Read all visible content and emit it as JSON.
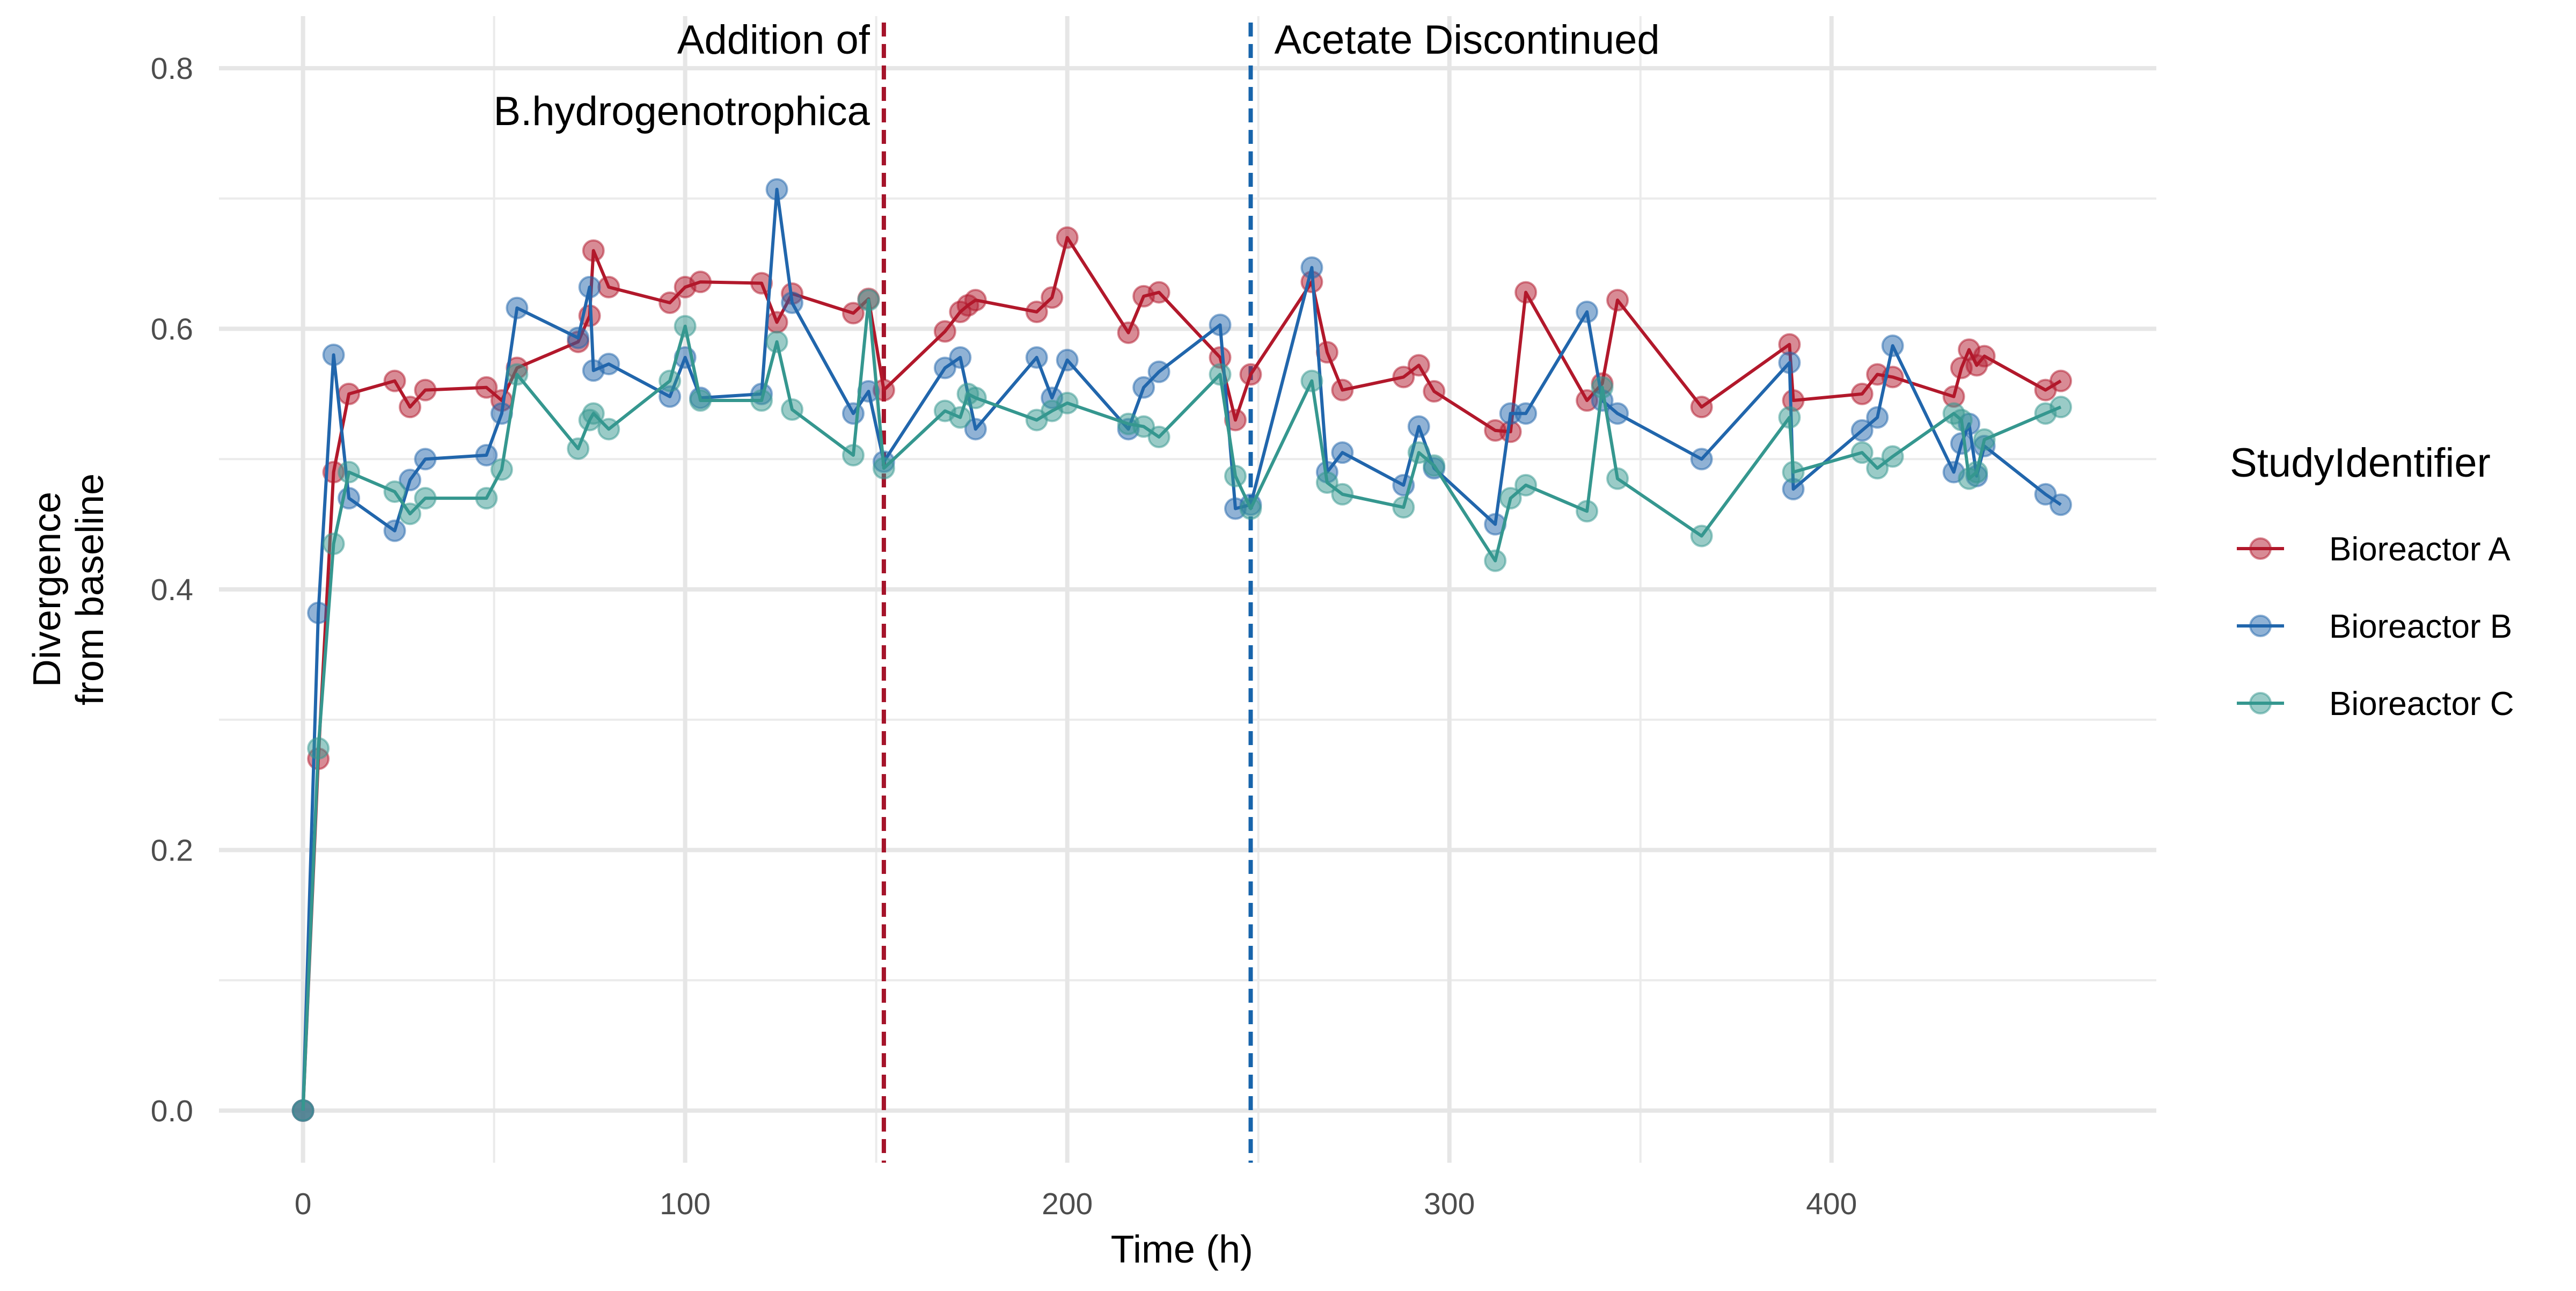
{
  "chart_data": {
    "type": "line",
    "title": "",
    "xlabel": "Time (h)",
    "ylabel_lines": [
      "Divergence",
      "from baseline"
    ],
    "xlim": [
      -22,
      485
    ],
    "ylim": [
      -0.04,
      0.84
    ],
    "xticks": [
      0,
      100,
      200,
      300,
      400
    ],
    "xtick_labels": [
      "0",
      "100",
      "200",
      "300",
      "400"
    ],
    "yticks": [
      0.0,
      0.2,
      0.4,
      0.6,
      0.8
    ],
    "ytick_labels": [
      "0.0",
      "0.2",
      "0.4",
      "0.6",
      "0.8"
    ],
    "grid": true,
    "legend": {
      "title": "StudyIdentifier",
      "position": "right"
    },
    "annotations": [
      {
        "type": "vline",
        "x": 152,
        "color": "#a5142a",
        "dash": true,
        "label_lines": [
          "Addition of",
          "B.hydrogenotrophica"
        ],
        "label_side": "left"
      },
      {
        "type": "vline",
        "x": 248,
        "color": "#1764ab",
        "dash": true,
        "label_lines": [
          "Acetate Discontinued"
        ],
        "label_side": "right"
      }
    ],
    "series": [
      {
        "name": "Bioreactor A",
        "color": "#b2182b",
        "points": [
          [
            0,
            0.0
          ],
          [
            4,
            0.27
          ],
          [
            8,
            0.49
          ],
          [
            12,
            0.55
          ],
          [
            24,
            0.56
          ],
          [
            28,
            0.54
          ],
          [
            32,
            0.553
          ],
          [
            48,
            0.555
          ],
          [
            52,
            0.545
          ],
          [
            56,
            0.57
          ],
          [
            72,
            0.59
          ],
          [
            75,
            0.61
          ],
          [
            76,
            0.66
          ],
          [
            80,
            0.632
          ],
          [
            96,
            0.62
          ],
          [
            100,
            0.632
          ],
          [
            104,
            0.636
          ],
          [
            120,
            0.635
          ],
          [
            124,
            0.605
          ],
          [
            128,
            0.627
          ],
          [
            144,
            0.612
          ],
          [
            148,
            0.623
          ],
          [
            152,
            0.553
          ],
          [
            168,
            0.598
          ],
          [
            172,
            0.613
          ],
          [
            174,
            0.618
          ],
          [
            176,
            0.622
          ],
          [
            192,
            0.613
          ],
          [
            196,
            0.624
          ],
          [
            200,
            0.67
          ],
          [
            216,
            0.597
          ],
          [
            220,
            0.625
          ],
          [
            224,
            0.628
          ],
          [
            240,
            0.578
          ],
          [
            244,
            0.53
          ],
          [
            248,
            0.565
          ],
          [
            264,
            0.636
          ],
          [
            268,
            0.582
          ],
          [
            272,
            0.553
          ],
          [
            288,
            0.563
          ],
          [
            292,
            0.572
          ],
          [
            296,
            0.552
          ],
          [
            312,
            0.522
          ],
          [
            316,
            0.521
          ],
          [
            320,
            0.628
          ],
          [
            336,
            0.545
          ],
          [
            340,
            0.558
          ],
          [
            344,
            0.622
          ],
          [
            366,
            0.54
          ],
          [
            389,
            0.588
          ],
          [
            390,
            0.545
          ],
          [
            408,
            0.55
          ],
          [
            412,
            0.565
          ],
          [
            416,
            0.563
          ],
          [
            432,
            0.548
          ],
          [
            434,
            0.57
          ],
          [
            436,
            0.584
          ],
          [
            438,
            0.572
          ],
          [
            440,
            0.579
          ],
          [
            456,
            0.553
          ],
          [
            460,
            0.56
          ]
        ]
      },
      {
        "name": "Bioreactor B",
        "color": "#2166ac",
        "points": [
          [
            0,
            0.0
          ],
          [
            4,
            0.382
          ],
          [
            8,
            0.58
          ],
          [
            12,
            0.47
          ],
          [
            24,
            0.445
          ],
          [
            28,
            0.484
          ],
          [
            32,
            0.5
          ],
          [
            48,
            0.503
          ],
          [
            52,
            0.535
          ],
          [
            56,
            0.616
          ],
          [
            72,
            0.593
          ],
          [
            75,
            0.632
          ],
          [
            76,
            0.568
          ],
          [
            80,
            0.573
          ],
          [
            96,
            0.548
          ],
          [
            100,
            0.578
          ],
          [
            104,
            0.547
          ],
          [
            120,
            0.55
          ],
          [
            124,
            0.707
          ],
          [
            128,
            0.62
          ],
          [
            144,
            0.535
          ],
          [
            148,
            0.552
          ],
          [
            152,
            0.498
          ],
          [
            168,
            0.57
          ],
          [
            172,
            0.578
          ],
          [
            176,
            0.523
          ],
          [
            192,
            0.578
          ],
          [
            196,
            0.547
          ],
          [
            200,
            0.576
          ],
          [
            216,
            0.523
          ],
          [
            220,
            0.555
          ],
          [
            224,
            0.567
          ],
          [
            240,
            0.603
          ],
          [
            244,
            0.462
          ],
          [
            248,
            0.465
          ],
          [
            264,
            0.647
          ],
          [
            268,
            0.49
          ],
          [
            272,
            0.505
          ],
          [
            288,
            0.48
          ],
          [
            292,
            0.525
          ],
          [
            296,
            0.493
          ],
          [
            312,
            0.45
          ],
          [
            316,
            0.535
          ],
          [
            320,
            0.535
          ],
          [
            336,
            0.613
          ],
          [
            340,
            0.545
          ],
          [
            344,
            0.535
          ],
          [
            366,
            0.5
          ],
          [
            389,
            0.574
          ],
          [
            390,
            0.477
          ],
          [
            408,
            0.522
          ],
          [
            412,
            0.532
          ],
          [
            416,
            0.587
          ],
          [
            432,
            0.49
          ],
          [
            434,
            0.512
          ],
          [
            436,
            0.527
          ],
          [
            438,
            0.487
          ],
          [
            440,
            0.51
          ],
          [
            456,
            0.473
          ],
          [
            460,
            0.465
          ]
        ]
      },
      {
        "name": "Bioreactor C",
        "color": "#35978f",
        "points": [
          [
            0,
            0.0
          ],
          [
            4,
            0.278
          ],
          [
            8,
            0.435
          ],
          [
            12,
            0.49
          ],
          [
            24,
            0.475
          ],
          [
            28,
            0.458
          ],
          [
            32,
            0.47
          ],
          [
            48,
            0.47
          ],
          [
            52,
            0.492
          ],
          [
            56,
            0.565
          ],
          [
            72,
            0.508
          ],
          [
            75,
            0.53
          ],
          [
            76,
            0.535
          ],
          [
            80,
            0.523
          ],
          [
            96,
            0.56
          ],
          [
            100,
            0.602
          ],
          [
            104,
            0.545
          ],
          [
            120,
            0.545
          ],
          [
            124,
            0.59
          ],
          [
            128,
            0.538
          ],
          [
            144,
            0.503
          ],
          [
            148,
            0.622
          ],
          [
            152,
            0.493
          ],
          [
            168,
            0.537
          ],
          [
            172,
            0.532
          ],
          [
            174,
            0.55
          ],
          [
            176,
            0.547
          ],
          [
            192,
            0.53
          ],
          [
            196,
            0.537
          ],
          [
            200,
            0.543
          ],
          [
            216,
            0.527
          ],
          [
            220,
            0.525
          ],
          [
            224,
            0.517
          ],
          [
            240,
            0.565
          ],
          [
            244,
            0.487
          ],
          [
            248,
            0.462
          ],
          [
            264,
            0.56
          ],
          [
            268,
            0.482
          ],
          [
            272,
            0.473
          ],
          [
            288,
            0.463
          ],
          [
            292,
            0.505
          ],
          [
            296,
            0.495
          ],
          [
            312,
            0.422
          ],
          [
            316,
            0.47
          ],
          [
            320,
            0.48
          ],
          [
            336,
            0.46
          ],
          [
            340,
            0.555
          ],
          [
            344,
            0.485
          ],
          [
            366,
            0.441
          ],
          [
            389,
            0.532
          ],
          [
            390,
            0.49
          ],
          [
            408,
            0.505
          ],
          [
            412,
            0.493
          ],
          [
            416,
            0.502
          ],
          [
            432,
            0.535
          ],
          [
            434,
            0.53
          ],
          [
            436,
            0.485
          ],
          [
            438,
            0.49
          ],
          [
            440,
            0.515
          ],
          [
            456,
            0.535
          ],
          [
            460,
            0.54
          ]
        ]
      }
    ]
  }
}
